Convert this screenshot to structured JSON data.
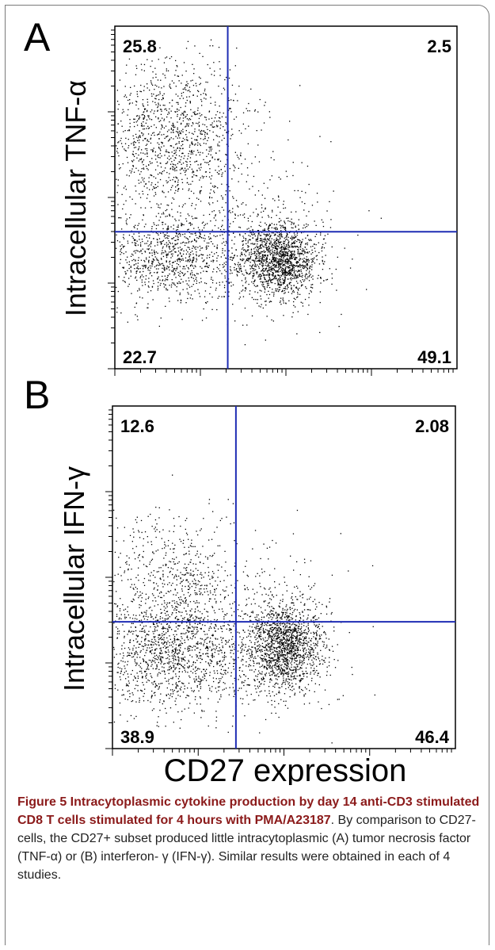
{
  "chart_data": [
    {
      "type": "scatter",
      "panel": "A",
      "ylabel": "Intracellular TNF-α",
      "xlabel": "CD27 expression",
      "quadrants": {
        "upper_left": "25.8",
        "upper_right": "2.5",
        "lower_left": "22.7",
        "lower_right": "49.1"
      },
      "gate_x_fraction": 0.33,
      "gate_y_fraction": 0.4,
      "clusters": [
        {
          "cx": 0.48,
          "cy": 0.32,
          "sx": 0.055,
          "sy": 0.055,
          "n": 1500
        },
        {
          "cx": 0.16,
          "cy": 0.32,
          "sx": 0.11,
          "sy": 0.065,
          "n": 900
        },
        {
          "cx": 0.16,
          "cy": 0.67,
          "sx": 0.11,
          "sy": 0.12,
          "n": 1300
        },
        {
          "cx": 0.4,
          "cy": 0.4,
          "sx": 0.14,
          "sy": 0.12,
          "n": 300
        }
      ]
    },
    {
      "type": "scatter",
      "panel": "B",
      "ylabel": "Intracellular IFN-γ",
      "xlabel": "CD27 expression",
      "quadrants": {
        "upper_left": "12.6",
        "upper_right": "2.08",
        "lower_left": "38.9",
        "lower_right": "46.4"
      },
      "gate_x_fraction": 0.36,
      "gate_y_fraction": 0.37,
      "clusters": [
        {
          "cx": 0.5,
          "cy": 0.3,
          "sx": 0.055,
          "sy": 0.065,
          "n": 1500
        },
        {
          "cx": 0.17,
          "cy": 0.28,
          "sx": 0.12,
          "sy": 0.085,
          "n": 1300
        },
        {
          "cx": 0.17,
          "cy": 0.5,
          "sx": 0.11,
          "sy": 0.09,
          "n": 600
        },
        {
          "cx": 0.42,
          "cy": 0.32,
          "sx": 0.13,
          "sy": 0.12,
          "n": 300
        }
      ]
    }
  ],
  "x_axis_title": "CD27 expression",
  "caption": {
    "label": "Figure 5 Intracytoplasmic cytokine production by day 14 anti-CD3 stimulated CD8 T cells stimulated for 4 hours with PMA/A23187",
    "text": ". By comparison to CD27- cells, the CD27+ subset produced little intracytoplasmic (A) tumor necrosis factor (TNF-α) or (B) interferon- γ (IFN-γ). Similar results were obtained in each of 4 studies."
  },
  "colors": {
    "dots": "#000000",
    "gate": "#1f2db4",
    "axis": "#000000",
    "caption_label": "#8b1a1a"
  }
}
